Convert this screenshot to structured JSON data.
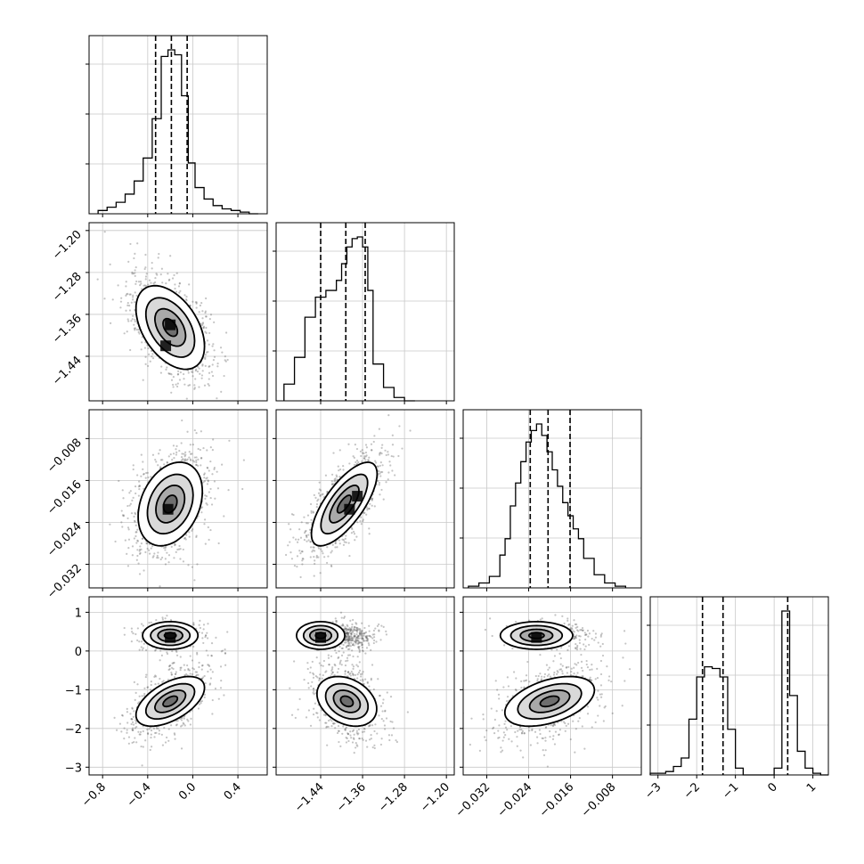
{
  "chart_data": {
    "type": "corner",
    "n_params": 4,
    "colors": {
      "line": "#000000",
      "grid": "#c8c8c8",
      "points": "#555555",
      "density": "#000000",
      "contour_fill": "#d9d9d9"
    },
    "grid": true,
    "params": [
      {
        "index": 0,
        "range": [
          -0.92,
          0.66
        ],
        "ticks": [
          -0.8,
          -0.4,
          0.0,
          0.4
        ],
        "tick_labels": [
          "−0.8",
          "−0.4",
          "0.0",
          "0.4"
        ],
        "quantiles": [
          -0.33,
          -0.19,
          -0.05
        ],
        "hist": {
          "edges": [
            -0.84,
            -0.76,
            -0.68,
            -0.6,
            -0.52,
            -0.44,
            -0.36,
            -0.28,
            -0.22,
            -0.16,
            -0.1,
            -0.04,
            0.02,
            0.1,
            0.18,
            0.26,
            0.34,
            0.42,
            0.5,
            0.58
          ],
          "counts": [
            2,
            4,
            7,
            12,
            20,
            34,
            58,
            96,
            100,
            97,
            72,
            31,
            16,
            9,
            5,
            3,
            2,
            1,
            0
          ]
        }
      },
      {
        "index": 1,
        "range": [
          -1.525,
          -1.185
        ],
        "ticks": [
          -1.44,
          -1.36,
          -1.28,
          -1.2
        ],
        "tick_labels": [
          "−1.44",
          "−1.36",
          "−1.28",
          "−1.20"
        ],
        "quantiles": [
          -1.44,
          -1.392,
          -1.355
        ],
        "hist": {
          "edges": [
            -1.51,
            -1.49,
            -1.47,
            -1.45,
            -1.43,
            -1.41,
            -1.4,
            -1.39,
            -1.38,
            -1.37,
            -1.36,
            -1.35,
            -1.34,
            -1.32,
            -1.3,
            -1.28,
            -1.26
          ],
          "counts": [
            10,
            26,
            50,
            62,
            66,
            72,
            82,
            92,
            97,
            98,
            92,
            66,
            22,
            8,
            2,
            0
          ]
        }
      },
      {
        "index": 2,
        "range": [
          -0.0365,
          -0.0025
        ],
        "ticks": [
          -0.032,
          -0.024,
          -0.016,
          -0.008
        ],
        "tick_labels": [
          "−0.032",
          "−0.024",
          "−0.016",
          "−0.008"
        ],
        "quantiles": [
          -0.0237,
          -0.0203,
          -0.0161
        ],
        "hist": {
          "edges": [
            -0.0355,
            -0.0335,
            -0.0315,
            -0.0295,
            -0.0285,
            -0.0275,
            -0.0265,
            -0.0255,
            -0.0245,
            -0.0235,
            -0.0225,
            -0.0215,
            -0.0205,
            -0.0195,
            -0.0185,
            -0.0175,
            -0.0165,
            -0.0155,
            -0.0145,
            -0.0135,
            -0.0115,
            -0.0095,
            -0.0075,
            -0.0055
          ],
          "counts": [
            1,
            3,
            7,
            20,
            30,
            50,
            64,
            77,
            89,
            96,
            100,
            93,
            83,
            72,
            62,
            52,
            44,
            36,
            30,
            18,
            8,
            3,
            1
          ]
        }
      },
      {
        "index": 3,
        "range": [
          -3.2,
          1.4
        ],
        "ticks": [
          -3,
          -2,
          -1,
          0,
          1
        ],
        "tick_labels": [
          "−3",
          "−2",
          "−1",
          "0",
          "1"
        ],
        "quantiles": [
          -1.85,
          -1.32,
          0.35
        ],
        "hist": {
          "edges": [
            -3.2,
            -2.8,
            -2.6,
            -2.4,
            -2.2,
            -2.0,
            -1.8,
            -1.6,
            -1.4,
            -1.2,
            -1.0,
            -0.8,
            -0.6,
            0.0,
            0.2,
            0.4,
            0.6,
            0.8,
            1.0,
            1.2,
            1.4
          ],
          "counts": [
            1,
            2,
            5,
            10,
            33,
            58,
            64,
            63,
            58,
            27,
            4,
            0,
            0,
            4,
            97,
            47,
            14,
            4,
            1,
            0
          ]
        }
      }
    ],
    "pairs": [
      {
        "x": 0,
        "y": 1,
        "mean": [
          -0.2,
          -1.385
        ],
        "sd": [
          0.16,
          0.042
        ],
        "rho": -0.45,
        "hot": [
          [
            -0.2,
            -1.38
          ],
          [
            -0.24,
            -1.42
          ]
        ]
      },
      {
        "x": 0,
        "y": 2,
        "mean": [
          -0.2,
          -0.0205
        ],
        "sd": [
          0.15,
          0.0042
        ],
        "rho": 0.3,
        "hot": [
          [
            -0.22,
            -0.0215
          ]
        ]
      },
      {
        "x": 1,
        "y": 2,
        "mean": [
          -1.395,
          -0.0205
        ],
        "sd": [
          0.033,
          0.0042
        ],
        "rho": 0.72,
        "hot": [
          [
            -1.385,
            -0.0215
          ],
          [
            -1.37,
            -0.019
          ]
        ]
      },
      {
        "x": 0,
        "y": 3,
        "mean": [
          -0.2,
          -1.3
        ],
        "sd": [
          0.16,
          0.45
        ],
        "rho": 0.55,
        "hot": [
          [
            -0.2,
            0.35
          ]
        ]
      },
      {
        "x": 1,
        "y": 3,
        "mean": [
          -1.39,
          -1.3
        ],
        "sd": [
          0.03,
          0.45
        ],
        "rho": -0.3,
        "hot": [
          [
            -1.44,
            0.35
          ]
        ]
      },
      {
        "x": 2,
        "y": 3,
        "mean": [
          -0.02,
          -1.3
        ],
        "sd": [
          0.0045,
          0.45
        ],
        "rho": 0.45,
        "hot": [
          [
            -0.0225,
            0.35
          ]
        ]
      }
    ],
    "mode_split": {
      "param": 3,
      "upper_mean": 0.4,
      "upper_sd": 0.18,
      "upper_frac": 0.35
    }
  }
}
